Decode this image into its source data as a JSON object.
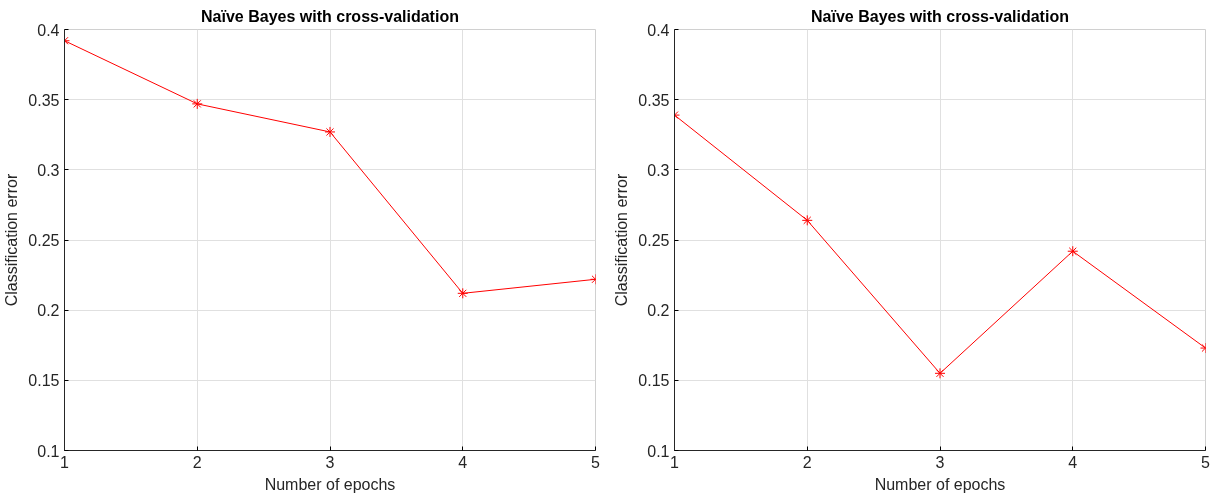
{
  "chart_data": [
    {
      "type": "line",
      "title": "Naïve Bayes with cross-validation",
      "xlabel": "Number of epochs",
      "ylabel": "Classification error",
      "x": [
        1,
        2,
        3,
        4,
        5
      ],
      "series": [
        {
          "color": "#ff0000",
          "values": [
            0.392,
            0.347,
            0.327,
            0.212,
            0.222
          ]
        }
      ],
      "xlim": [
        1,
        5
      ],
      "xticks": [
        1,
        2,
        3,
        4,
        5
      ],
      "ylim": [
        0.1,
        0.4
      ],
      "yticks": [
        0.1,
        0.15,
        0.2,
        0.25,
        0.3,
        0.35,
        0.4
      ],
      "grid": true,
      "marker": "cross",
      "line_style": "solid"
    },
    {
      "type": "line",
      "title": "Naïve Bayes with cross-validation",
      "xlabel": "Number of epochs",
      "ylabel": "Classification error",
      "x": [
        1,
        2,
        3,
        4,
        5
      ],
      "series": [
        {
          "color": "#ff0000",
          "values": [
            0.339,
            0.264,
            0.155,
            0.242,
            0.173
          ]
        }
      ],
      "xlim": [
        1,
        5
      ],
      "xticks": [
        1,
        2,
        3,
        4,
        5
      ],
      "ylim": [
        0.1,
        0.4
      ],
      "yticks": [
        0.1,
        0.15,
        0.2,
        0.25,
        0.3,
        0.35,
        0.4
      ],
      "grid": true,
      "marker": "cross",
      "line_style": "solid"
    }
  ]
}
